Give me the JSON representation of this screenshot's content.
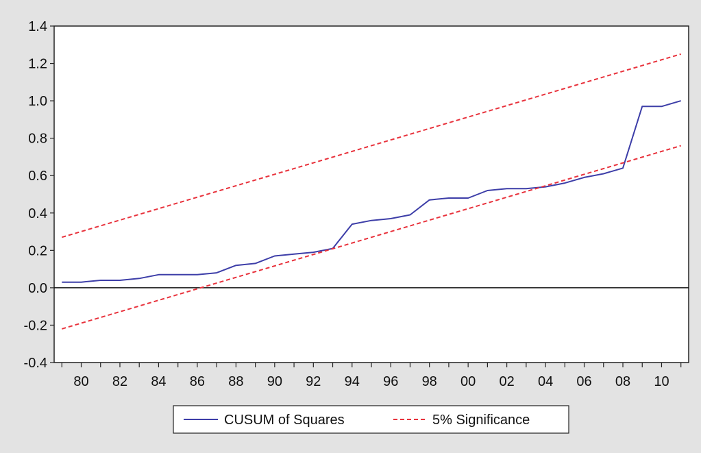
{
  "chart_data": {
    "type": "line",
    "title": "",
    "xlabel": "",
    "ylabel": "",
    "xlim": [
      1978.6,
      2011.4
    ],
    "ylim": [
      -0.4,
      1.4
    ],
    "yticks": [
      -0.4,
      -0.2,
      0.0,
      0.2,
      0.4,
      0.6,
      0.8,
      1.0,
      1.2,
      1.4
    ],
    "ytick_labels": [
      "-0.4",
      "-0.2",
      "0.0",
      "0.2",
      "0.4",
      "0.6",
      "0.8",
      "1.0",
      "1.2",
      "1.4"
    ],
    "xticks": [
      1980,
      1982,
      1984,
      1986,
      1988,
      1990,
      1992,
      1994,
      1996,
      1998,
      2000,
      2002,
      2004,
      2006,
      2008,
      2010
    ],
    "xtick_labels": [
      "80",
      "82",
      "84",
      "86",
      "88",
      "90",
      "92",
      "94",
      "96",
      "98",
      "00",
      "02",
      "04",
      "06",
      "08",
      "10"
    ],
    "zero_line": true,
    "grid": false,
    "legend_position": "bottom",
    "series": [
      {
        "name": "CUSUM of Squares",
        "color": "#3d3ea8",
        "style": "solid",
        "x": [
          1979,
          1980,
          1981,
          1982,
          1983,
          1984,
          1985,
          1986,
          1987,
          1988,
          1989,
          1990,
          1991,
          1992,
          1993,
          1994,
          1995,
          1996,
          1997,
          1998,
          1999,
          2000,
          2001,
          2002,
          2003,
          2004,
          2005,
          2006,
          2007,
          2008,
          2009,
          2010,
          2011
        ],
        "values": [
          0.03,
          0.03,
          0.04,
          0.04,
          0.05,
          0.07,
          0.07,
          0.07,
          0.08,
          0.12,
          0.13,
          0.17,
          0.18,
          0.19,
          0.21,
          0.34,
          0.36,
          0.37,
          0.39,
          0.47,
          0.48,
          0.48,
          0.52,
          0.53,
          0.53,
          0.54,
          0.56,
          0.59,
          0.61,
          0.64,
          0.97,
          0.97,
          1.0
        ]
      },
      {
        "name": "5% Significance",
        "color": "#e8323c",
        "style": "dashed",
        "x": [
          1979,
          2011
        ],
        "values": [
          0.27,
          1.25
        ]
      },
      {
        "name": "5% Significance",
        "color": "#e8323c",
        "style": "dashed",
        "show_in_legend": false,
        "x": [
          1979,
          2011
        ],
        "values": [
          -0.22,
          0.76
        ]
      }
    ]
  }
}
